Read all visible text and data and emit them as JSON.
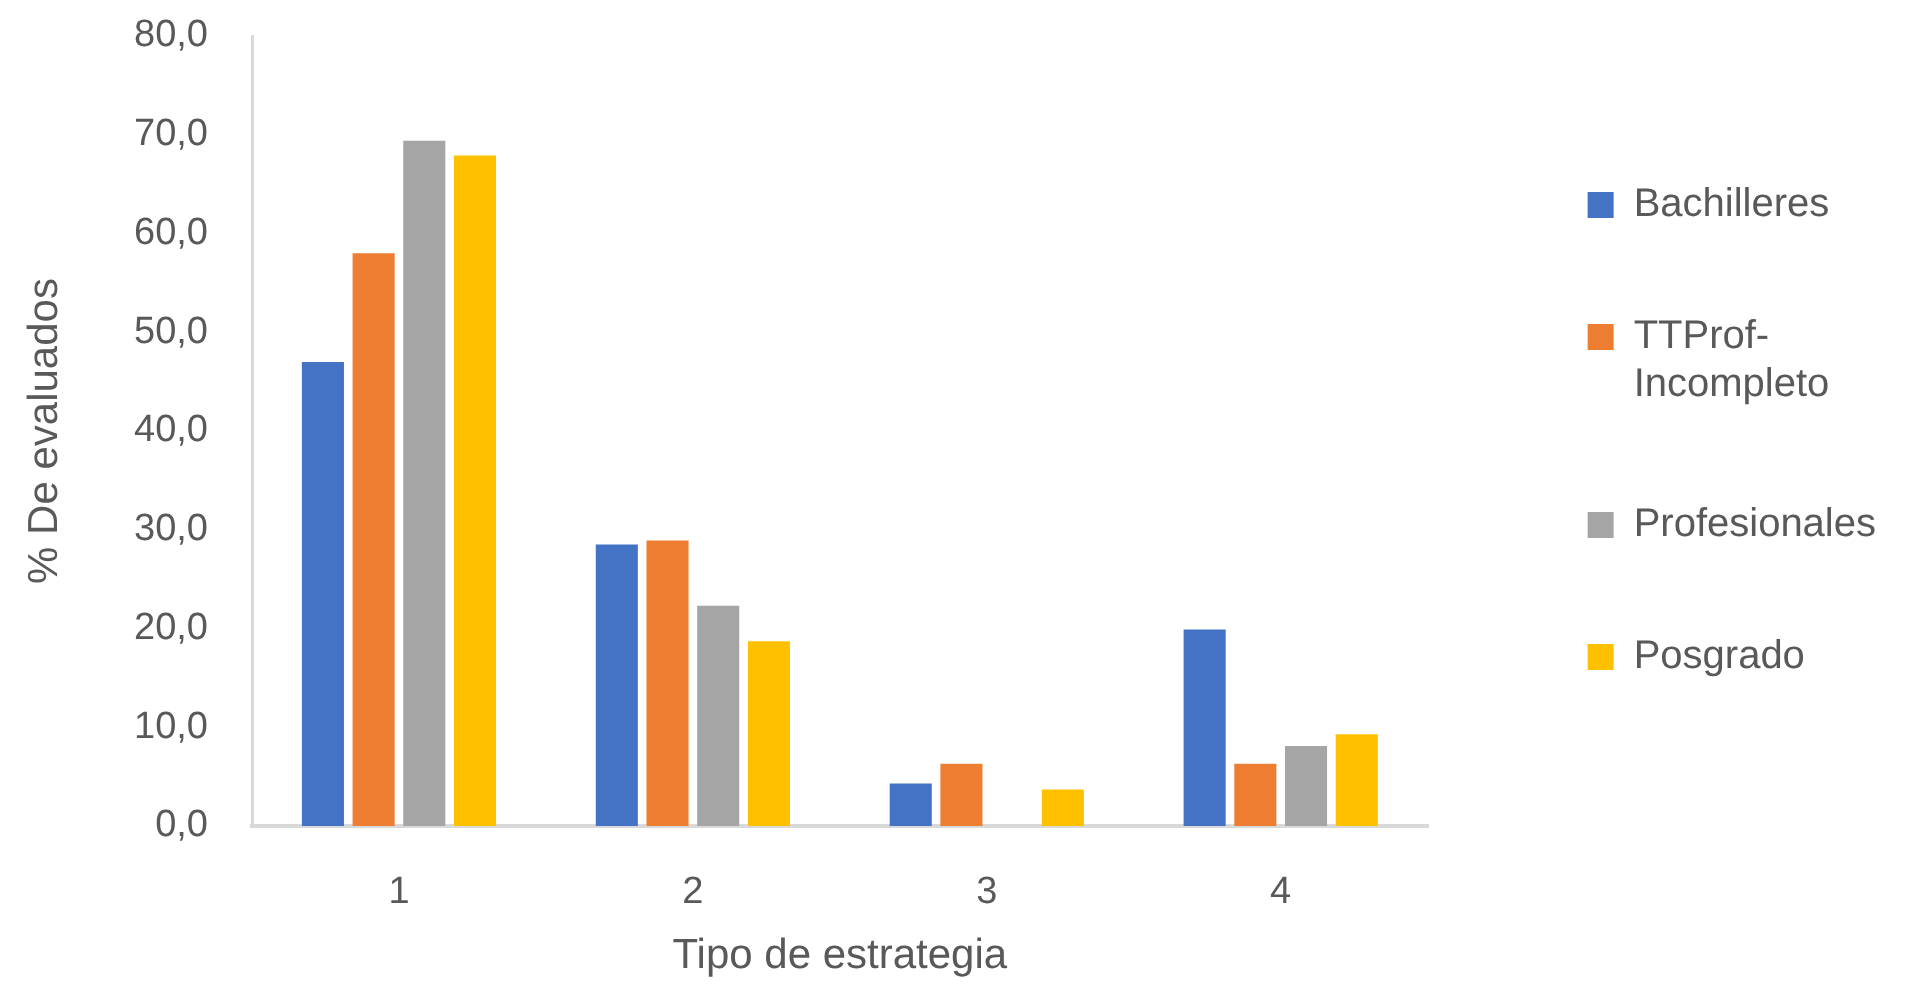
{
  "chart_data": {
    "type": "bar",
    "xlabel": "Tipo de estrategia",
    "ylabel": "% De evaluados",
    "categories": [
      "1",
      "2",
      "3",
      "4"
    ],
    "series": [
      {
        "name": "Bachilleres",
        "color": "#4472c4",
        "values": [
          47.0,
          28.5,
          4.3,
          19.9
        ]
      },
      {
        "name": "TTProf-Incompleto",
        "color": "#ed7d31",
        "values": [
          58.0,
          28.9,
          6.3,
          6.3
        ]
      },
      {
        "name": "Profesionales",
        "color": "#a5a5a5",
        "values": [
          69.4,
          22.3,
          null,
          8.1
        ]
      },
      {
        "name": "Posgrado",
        "color": "#ffc000",
        "values": [
          67.9,
          18.7,
          3.7,
          9.3
        ]
      }
    ],
    "ylim": [
      0,
      80
    ],
    "yticks": [
      {
        "value": 0,
        "label": "0,0"
      },
      {
        "value": 10,
        "label": "10,0"
      },
      {
        "value": 20,
        "label": "20,0"
      },
      {
        "value": 30,
        "label": "30,0"
      },
      {
        "value": 40,
        "label": "40,0"
      },
      {
        "value": 50,
        "label": "50,0"
      },
      {
        "value": 60,
        "label": "60,0"
      },
      {
        "value": 70,
        "label": "70,0"
      },
      {
        "value": 80,
        "label": "80,0"
      }
    ],
    "grid": false,
    "legend": "right"
  }
}
